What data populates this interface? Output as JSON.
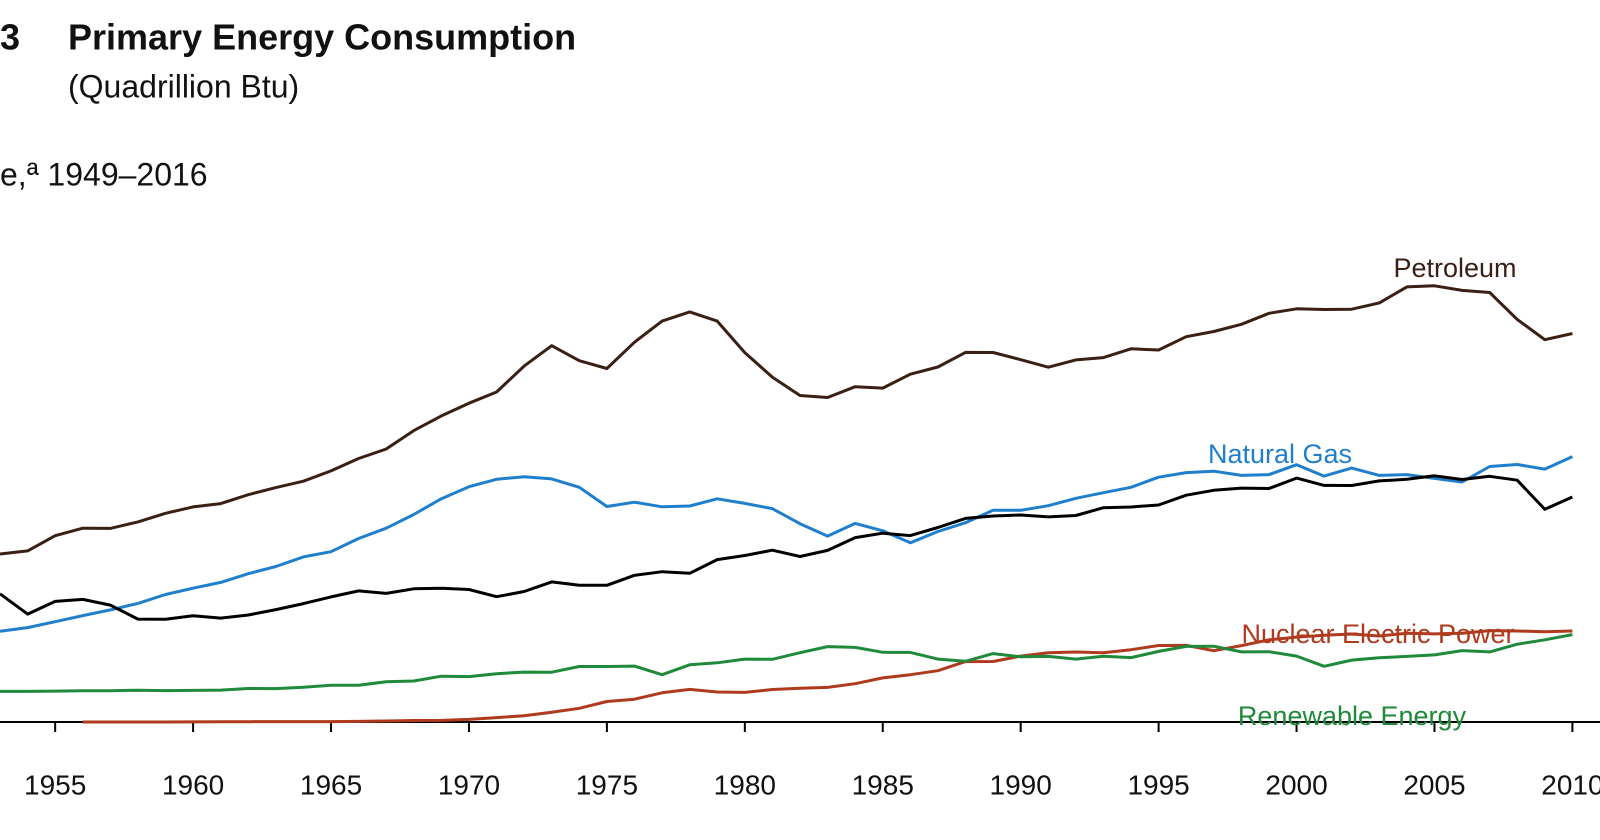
{
  "chart_data": {
    "type": "line",
    "figure_number": "3",
    "title": "Primary Energy Consumption",
    "subtitle": "(Quadrillion Btu)",
    "panel_title": "e,ª 1949–2016",
    "x": [
      1953,
      1954,
      1955,
      1956,
      1957,
      1958,
      1959,
      1960,
      1961,
      1962,
      1963,
      1964,
      1965,
      1966,
      1967,
      1968,
      1969,
      1970,
      1971,
      1972,
      1973,
      1974,
      1975,
      1976,
      1977,
      1978,
      1979,
      1980,
      1981,
      1982,
      1983,
      1984,
      1985,
      1986,
      1987,
      1988,
      1989,
      1990,
      1991,
      1992,
      1993,
      1994,
      1995,
      1996,
      1997,
      1998,
      1999,
      2000,
      2001,
      2002,
      2003,
      2004,
      2005,
      2006,
      2007,
      2008,
      2009,
      2010
    ],
    "xlim": [
      1953,
      2011
    ],
    "xticks": [
      1955,
      1960,
      1965,
      1970,
      1975,
      1980,
      1985,
      1990,
      1995,
      2000,
      2005,
      2010
    ],
    "ylim": [
      0,
      45
    ],
    "series": [
      {
        "name": "Petroleum",
        "color": "#3a1f14",
        "values": [
          15.56,
          15.84,
          17.25,
          17.94,
          17.93,
          18.53,
          19.32,
          19.92,
          20.22,
          21.05,
          21.7,
          22.3,
          23.25,
          24.4,
          25.28,
          26.98,
          28.34,
          29.52,
          30.56,
          32.95,
          34.84,
          33.45,
          32.73,
          35.17,
          37.12,
          37.97,
          37.12,
          34.2,
          31.93,
          30.23,
          30.05,
          31.05,
          30.92,
          32.2,
          32.87,
          34.22,
          34.21,
          33.55,
          32.85,
          33.53,
          33.74,
          34.56,
          34.44,
          35.68,
          36.16,
          36.82,
          37.84,
          38.26,
          38.19,
          38.22,
          38.81,
          40.29,
          40.39,
          39.96,
          39.77,
          37.28,
          35.4,
          35.97
        ]
      },
      {
        "name": "Natural Gas",
        "color": "#1f7fcc",
        "values": [
          8.4,
          8.74,
          9.29,
          9.85,
          10.38,
          10.98,
          11.81,
          12.39,
          12.93,
          13.73,
          14.4,
          15.29,
          15.77,
          16.99,
          17.94,
          19.21,
          20.68,
          21.79,
          22.47,
          22.7,
          22.51,
          21.73,
          19.95,
          20.35,
          19.93,
          20.0,
          20.67,
          20.24,
          19.75,
          18.36,
          17.21,
          18.39,
          17.7,
          16.59,
          17.64,
          18.45,
          19.6,
          19.6,
          20.03,
          20.71,
          21.23,
          21.73,
          22.67,
          23.09,
          23.22,
          22.83,
          22.91,
          23.82,
          22.77,
          23.51,
          22.83,
          22.91,
          22.56,
          22.22,
          23.66,
          23.84,
          23.42,
          24.57
        ]
      },
      {
        "color": "#000000",
        "values": [
          11.87,
          9.99,
          11.17,
          11.35,
          10.82,
          9.53,
          9.52,
          9.84,
          9.62,
          9.91,
          10.41,
          10.96,
          11.58,
          12.14,
          11.91,
          12.33,
          12.38,
          12.27,
          11.6,
          12.08,
          12.97,
          12.66,
          12.66,
          13.58,
          13.92,
          13.77,
          15.04,
          15.42,
          15.91,
          15.32,
          15.89,
          17.07,
          17.48,
          17.26,
          18.01,
          18.85,
          19.07,
          19.17,
          18.99,
          19.12,
          19.84,
          19.91,
          20.09,
          21.0,
          21.45,
          21.66,
          21.62,
          22.58,
          21.91,
          21.9,
          22.32,
          22.47,
          22.8,
          22.45,
          22.75,
          22.39,
          19.69,
          20.83
        ]
      },
      {
        "name": "Nuclear Electric Power",
        "color": "#b03a1e",
        "values": [
          null,
          null,
          null,
          0,
          0,
          0.002,
          0.002,
          0.006,
          0.02,
          0.03,
          0.04,
          0.04,
          0.04,
          0.06,
          0.09,
          0.14,
          0.15,
          0.24,
          0.41,
          0.58,
          0.91,
          1.27,
          1.9,
          2.11,
          2.7,
          3.02,
          2.78,
          2.74,
          3.01,
          3.13,
          3.2,
          3.55,
          4.08,
          4.38,
          4.75,
          5.59,
          5.6,
          6.1,
          6.42,
          6.48,
          6.41,
          6.69,
          7.08,
          7.09,
          6.6,
          7.07,
          7.61,
          7.86,
          8.03,
          8.15,
          7.96,
          8.22,
          8.16,
          8.21,
          8.46,
          8.43,
          8.36,
          8.43
        ]
      },
      {
        "name": "Renewable Energy",
        "color": "#1e8a3a",
        "values": [
          2.83,
          2.83,
          2.86,
          2.89,
          2.89,
          2.94,
          2.91,
          2.93,
          2.95,
          3.1,
          3.09,
          3.21,
          3.4,
          3.41,
          3.72,
          3.8,
          4.24,
          4.2,
          4.47,
          4.62,
          4.61,
          5.14,
          5.14,
          5.18,
          4.38,
          5.3,
          5.48,
          5.82,
          5.81,
          6.42,
          6.98,
          6.91,
          6.45,
          6.44,
          5.82,
          5.62,
          6.33,
          6.04,
          6.07,
          5.82,
          6.08,
          5.96,
          6.54,
          7.0,
          7.02,
          6.49,
          6.51,
          6.1,
          5.16,
          5.73,
          5.95,
          6.07,
          6.21,
          6.61,
          6.49,
          7.2,
          7.61,
          8.09
        ]
      }
    ]
  }
}
